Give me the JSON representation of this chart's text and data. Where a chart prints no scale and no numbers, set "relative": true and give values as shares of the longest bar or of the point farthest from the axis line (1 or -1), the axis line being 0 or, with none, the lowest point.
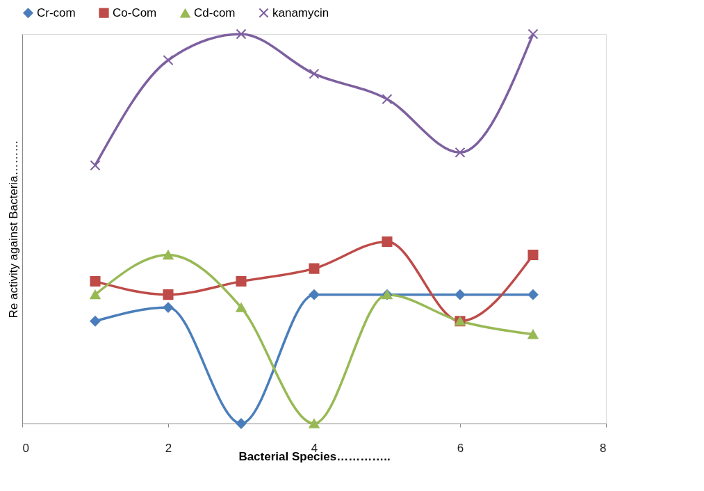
{
  "chart_data": {
    "type": "line",
    "relative": true,
    "xlabel": "Bacterial Species…………..",
    "ylabel": "Re activity against Bacteria………",
    "x": [
      1,
      2,
      3,
      4,
      5,
      6,
      7
    ],
    "xlim": [
      0,
      8
    ],
    "xticks": [
      0,
      2,
      4,
      6,
      8
    ],
    "tick_labels": "x",
    "grid": false,
    "legend": "top",
    "line_style": "solid",
    "series": [
      {
        "name": "Cr-com",
        "color": "#4a7ebb",
        "marker": "diamond",
        "values": [
          0.263,
          0.298,
          0,
          0.331,
          0.331,
          0.331,
          0.331
        ]
      },
      {
        "name": "Co-Com",
        "color": "#be4b48",
        "marker": "square",
        "values": [
          0.365,
          0.331,
          0.365,
          0.398,
          0.467,
          0.263,
          0.433
        ]
      },
      {
        "name": "Cd-com",
        "color": "#98b954",
        "marker": "triangle",
        "values": [
          0.331,
          0.433,
          0.298,
          0,
          0.331,
          0.263,
          0.229
        ]
      },
      {
        "name": "kanamycin",
        "color": "#7d60a0",
        "marker": "cross",
        "values": [
          0.663,
          0.933,
          1,
          0.898,
          0.833,
          0.696,
          1
        ]
      }
    ]
  }
}
